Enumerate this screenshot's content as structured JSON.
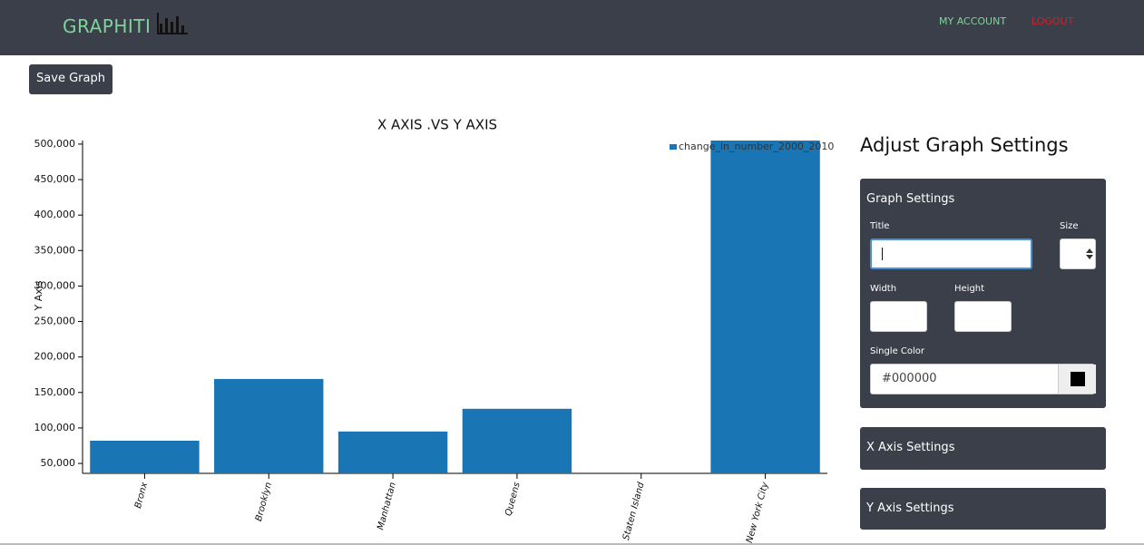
{
  "header": {
    "logo": "GRAPHITI",
    "links": [
      "MY ACCOUNT",
      "LOGOUT"
    ]
  },
  "toolbar": {
    "button": "Save Graph"
  },
  "chart_data": {
    "type": "bar",
    "title": "X AXIS .VS Y AXIS",
    "y_label": "Y Axis",
    "categories": [
      "Bronx",
      "Brooklyn",
      "Manhattan",
      "Queens",
      "Staten Island",
      "New York City"
    ],
    "series": [
      {
        "name": "change_in_number_2000_2010",
        "color": "#1a75b5",
        "values": [
          82000,
          169000,
          95000,
          127000,
          36000,
          505000
        ]
      }
    ],
    "ylim": [
      36000,
      505000
    ],
    "yticks": [
      {
        "value": 50000,
        "label": "50,000"
      },
      {
        "value": 100000,
        "label": "100,000"
      },
      {
        "value": 150000,
        "label": "150,000"
      },
      {
        "value": 200000,
        "label": "200,000"
      },
      {
        "value": 250000,
        "label": "250,000"
      },
      {
        "value": 300000,
        "label": "300,000"
      },
      {
        "value": 350000,
        "label": "350,000"
      },
      {
        "value": 400000,
        "label": "400,000"
      },
      {
        "value": 450000,
        "label": "450,000"
      },
      {
        "value": 500000,
        "label": "500,000"
      }
    ],
    "legend": "top-right"
  },
  "settings": {
    "title": "Adjust Graph Settings",
    "graph_settings": {
      "heading": "Graph Settings",
      "title_label": "Title",
      "size_label": "Size",
      "width_label": "Width",
      "height_label": "Height",
      "color_label": "Single Color",
      "color_value": "#000000"
    },
    "x_axis": "X Axis Settings",
    "y_axis": "Y Axis Settings"
  }
}
